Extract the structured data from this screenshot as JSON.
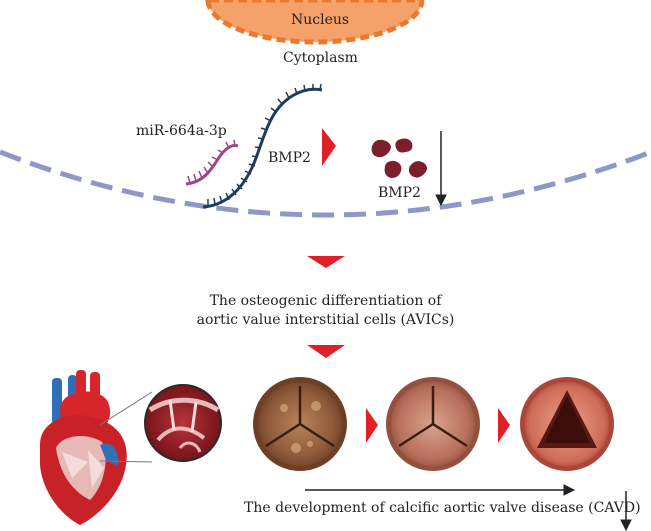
{
  "labels": {
    "nucleus": "Nucleus",
    "cytoplasm": "Cytoplasm",
    "mirna": "miR-664a-3p",
    "bmp2_mrna": "BMP2",
    "bmp2_protein": "BMP2",
    "step1_line1": "The osteogenic differentiation of",
    "step1_line2": "aortic value interstitial cells (AVICs)",
    "cavd": "The development of calcific aortic valve disease (CAVD)"
  },
  "colors": {
    "nucleus_fill": "#f4a26a",
    "nucleus_border": "#e8792e",
    "membrane": "#8f96c8",
    "arrow_red": "#e01f26",
    "mirna": "#a0448a",
    "mrna": "#1f3c5a",
    "protein": "#7a1f2b"
  },
  "icons": [
    "heart-illustration",
    "zoom-magnifier-circle",
    "valve-stage-1",
    "valve-stage-2",
    "valve-stage-3"
  ]
}
